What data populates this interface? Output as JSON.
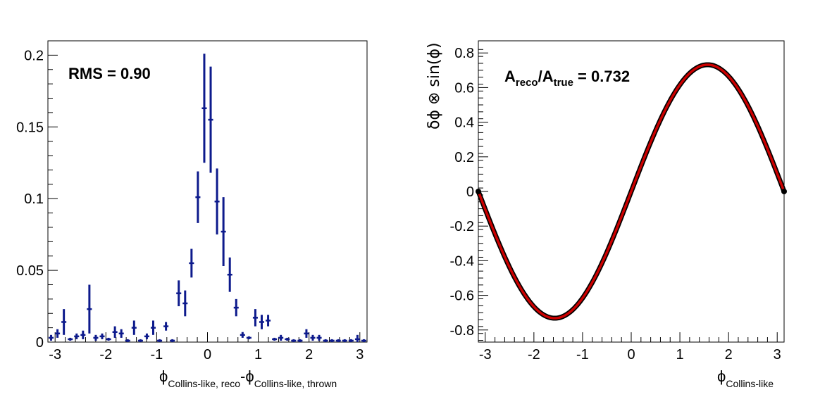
{
  "charts": [
    {
      "id": "left",
      "annotation": {
        "text": "RMS = 0.90"
      },
      "xtitle": {
        "parts": [
          {
            "sym": "ϕ",
            "sub": "Collins-like, reco"
          },
          {
            "sym": "-ϕ",
            "sub": "Collins-like, thrown"
          }
        ]
      }
    },
    {
      "id": "right",
      "annotation": {
        "A": "A",
        "sub1": "reco",
        "slash": "/A",
        "sub2": "true",
        "rest": " = 0.732"
      },
      "ytitle": "δϕ ⊗ sin(ϕ)",
      "xtitle": {
        "parts": [
          {
            "sym": "ϕ",
            "sub": "Collins-like"
          }
        ]
      }
    }
  ],
  "colors": {
    "hist": "#0d1a8c",
    "curve": "#cc0000",
    "outline": "#000000"
  },
  "chart_data": [
    {
      "type": "scatter",
      "style": "histogram with error bars",
      "xlim": [
        -3.14159,
        3.14159
      ],
      "ylim": [
        0,
        0.21
      ],
      "xticks": [
        -3,
        -2,
        -1,
        0,
        1,
        2,
        3
      ],
      "xticklabels": [
        "-3",
        "-2",
        "-1",
        "0",
        "1",
        "2",
        "3"
      ],
      "yticks": [
        0,
        0.05,
        0.1,
        0.15,
        0.2
      ],
      "yticklabels": [
        "0",
        "0.05",
        "0.1",
        "0.15",
        "0.2"
      ],
      "nbins": 50,
      "values": [
        0.003,
        0.006,
        0.014,
        0.002,
        0.004,
        0.005,
        0.023,
        0.003,
        0.004,
        0.002,
        0.007,
        0.006,
        0.001,
        0.01,
        0.001,
        0.004,
        0.01,
        0.001,
        0.011,
        0.001,
        0.034,
        0.027,
        0.055,
        0.101,
        0.163,
        0.155,
        0.098,
        0.077,
        0.047,
        0.024,
        0.005,
        0.003,
        0.017,
        0.014,
        0.015,
        0.002,
        0.003,
        0.002,
        0.001,
        0.001,
        0.006,
        0.003,
        0.003,
        0.001,
        0.001,
        0.001,
        0.001,
        0.001,
        0.002,
        0.001
      ],
      "errors": [
        0.002,
        0.003,
        0.009,
        0.001,
        0.002,
        0.003,
        0.017,
        0.002,
        0.002,
        0.001,
        0.004,
        0.003,
        0.001,
        0.005,
        0.001,
        0.002,
        0.005,
        0.001,
        0.003,
        0.001,
        0.009,
        0.009,
        0.01,
        0.018,
        0.038,
        0.037,
        0.023,
        0.024,
        0.012,
        0.006,
        0.002,
        0.001,
        0.006,
        0.005,
        0.004,
        0.001,
        0.002,
        0.001,
        0.001,
        0.001,
        0.003,
        0.002,
        0.002,
        0.001,
        0.001,
        0.001,
        0.001,
        0.001,
        0.003,
        0.001
      ]
    },
    {
      "type": "line",
      "function": "A*sin(x)",
      "amplitude": 0.732,
      "xlim": [
        -3.14159,
        3.14159
      ],
      "ylim": [
        -0.87,
        0.87
      ],
      "xticks": [
        -3,
        -2,
        -1,
        0,
        1,
        2,
        3
      ],
      "xticklabels": [
        "-3",
        "-2",
        "-1",
        "0",
        "1",
        "2",
        "3"
      ],
      "yticks": [
        -0.8,
        -0.6,
        -0.4,
        -0.2,
        0,
        0.2,
        0.4,
        0.6,
        0.8
      ],
      "yticklabels": [
        "-0.8",
        "-0.6",
        "-0.4",
        "-0.2",
        "0",
        "0.2",
        "0.4",
        "0.6",
        "0.8"
      ]
    }
  ]
}
